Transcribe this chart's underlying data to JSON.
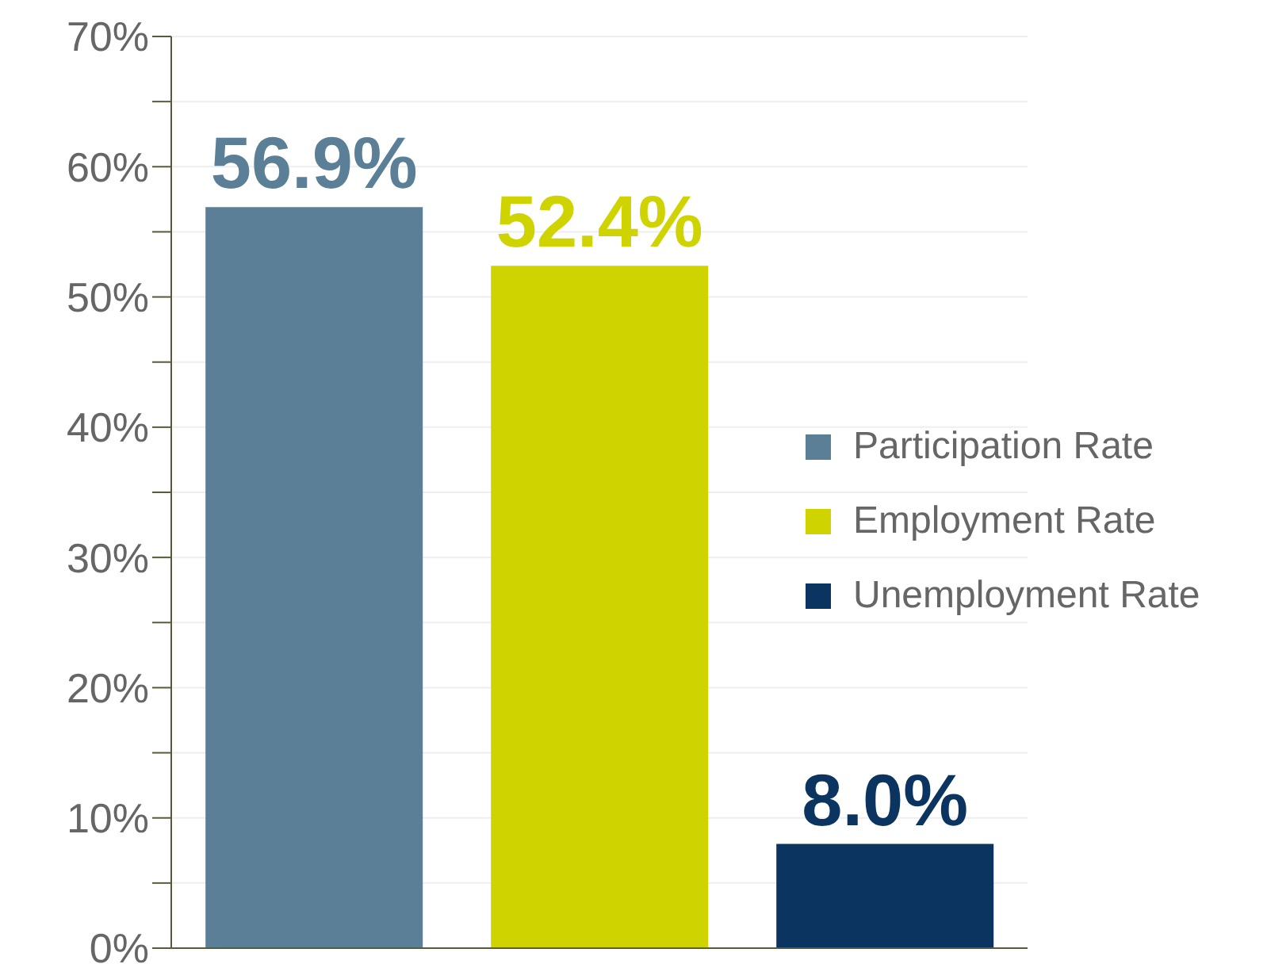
{
  "chart_data": {
    "type": "bar",
    "stacked": true,
    "categories": [
      null,
      null,
      null
    ],
    "series": [
      {
        "name": "Participation Rate",
        "color": "#5a7f96",
        "values": [
          56.9,
          null,
          null
        ],
        "value_labels": [
          "56.9%",
          null,
          null
        ]
      },
      {
        "name": "Employment Rate",
        "color": "#cfd300",
        "values": [
          null,
          52.4,
          null
        ],
        "value_labels": [
          null,
          "52.4%",
          null
        ]
      },
      {
        "name": "Unemployment Rate",
        "color": "#0b3560",
        "values": [
          null,
          null,
          8.0
        ],
        "value_labels": [
          null,
          null,
          "8.0%"
        ]
      }
    ],
    "ylim": [
      0,
      70
    ],
    "yticks": [
      {
        "value": 0,
        "label": "0%"
      },
      {
        "value": 5,
        "label": null
      },
      {
        "value": 10,
        "label": "10%"
      },
      {
        "value": 15,
        "label": null
      },
      {
        "value": 20,
        "label": "20%"
      },
      {
        "value": 25,
        "label": null
      },
      {
        "value": 30,
        "label": "30%"
      },
      {
        "value": 35,
        "label": null
      },
      {
        "value": 40,
        "label": "40%"
      },
      {
        "value": 45,
        "label": null
      },
      {
        "value": 50,
        "label": "50%"
      },
      {
        "value": 55,
        "label": null
      },
      {
        "value": 60,
        "label": "60%"
      },
      {
        "value": 65,
        "label": null
      },
      {
        "value": 70,
        "label": "70%"
      }
    ],
    "grid": "y",
    "legend": "right",
    "tick_labels": "y"
  }
}
